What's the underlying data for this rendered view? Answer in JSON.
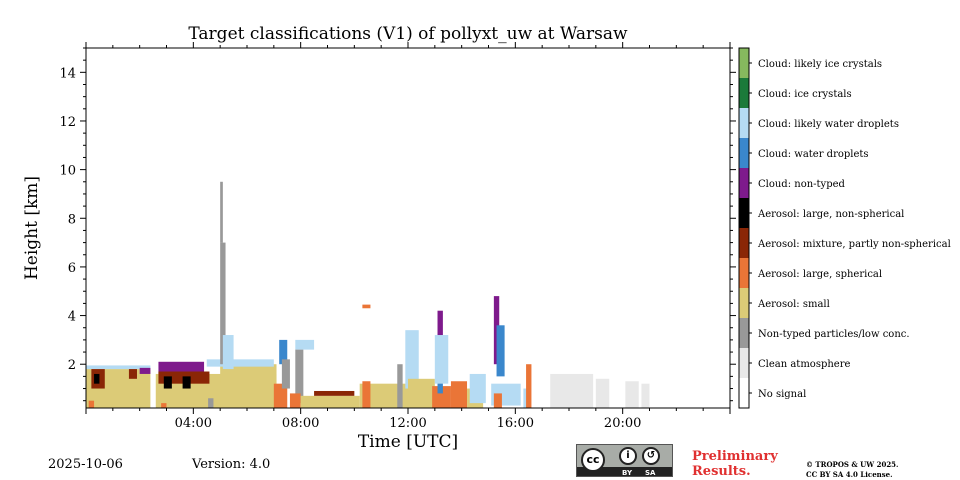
{
  "chart_data": {
    "type": "heatmap",
    "title": "Target classifications (V1) of pollyxt_uw at Warsaw",
    "xlabel": "Time [UTC]",
    "ylabel": "Height [km]",
    "xlim_hours": [
      0,
      24
    ],
    "ylim_km": [
      0.2,
      15.0
    ],
    "x_ticks": [
      {
        "hour": 4,
        "label": "04:00"
      },
      {
        "hour": 8,
        "label": "08:00"
      },
      {
        "hour": 12,
        "label": "12:00"
      },
      {
        "hour": 16,
        "label": "16:00"
      },
      {
        "hour": 20,
        "label": "20:00"
      }
    ],
    "y_ticks": [
      {
        "km": 2,
        "label": "2"
      },
      {
        "km": 4,
        "label": "4"
      },
      {
        "km": 6,
        "label": "6"
      },
      {
        "km": 8,
        "label": "8"
      },
      {
        "km": 10,
        "label": "10"
      },
      {
        "km": 12,
        "label": "12"
      },
      {
        "km": 14,
        "label": "14"
      }
    ],
    "classes": [
      {
        "id": 0,
        "label": "No signal",
        "color": "#ffffff"
      },
      {
        "id": 1,
        "label": "Clean atmosphere",
        "color": "#e8e8e8"
      },
      {
        "id": 2,
        "label": "Non-typed particles/low conc.",
        "color": "#999999"
      },
      {
        "id": 3,
        "label": "Aerosol: small",
        "color": "#dccb77"
      },
      {
        "id": 4,
        "label": "Aerosol: large, spherical",
        "color": "#ea7537"
      },
      {
        "id": 5,
        "label": "Aerosol: mixture, partly non-spherical",
        "color": "#8a2606"
      },
      {
        "id": 6,
        "label": "Aerosol: large, non-spherical",
        "color": "#000000"
      },
      {
        "id": 7,
        "label": "Cloud: non-typed",
        "color": "#7e1a8c"
      },
      {
        "id": 8,
        "label": "Cloud: water droplets",
        "color": "#3a87cc"
      },
      {
        "id": 9,
        "label": "Cloud: likely water droplets",
        "color": "#b5dbf3"
      },
      {
        "id": 10,
        "label": "Cloud: ice crystals",
        "color": "#1b7a3a"
      },
      {
        "id": 11,
        "label": "Cloud: likely ice crystals",
        "color": "#86b95e"
      }
    ],
    "regions": [
      {
        "cls": 3,
        "t": [
          0.0,
          2.4
        ],
        "h": [
          0.2,
          1.8
        ]
      },
      {
        "cls": 9,
        "t": [
          0.0,
          2.4
        ],
        "h": [
          1.8,
          1.95
        ]
      },
      {
        "cls": 5,
        "t": [
          0.2,
          0.7
        ],
        "h": [
          1.0,
          1.8
        ]
      },
      {
        "cls": 6,
        "t": [
          0.3,
          0.5
        ],
        "h": [
          1.2,
          1.6
        ]
      },
      {
        "cls": 4,
        "t": [
          0.1,
          0.3
        ],
        "h": [
          0.2,
          0.5
        ]
      },
      {
        "cls": 5,
        "t": [
          1.6,
          1.9
        ],
        "h": [
          1.4,
          1.8
        ]
      },
      {
        "cls": 7,
        "t": [
          2.0,
          2.4
        ],
        "h": [
          1.6,
          1.85
        ]
      },
      {
        "cls": 3,
        "t": [
          2.6,
          7.1
        ],
        "h": [
          0.2,
          1.6
        ]
      },
      {
        "cls": 3,
        "t": [
          5.0,
          7.1
        ],
        "h": [
          1.2,
          2.0
        ]
      },
      {
        "cls": 7,
        "t": [
          2.7,
          4.4
        ],
        "h": [
          1.6,
          2.1
        ]
      },
      {
        "cls": 5,
        "t": [
          2.7,
          4.6
        ],
        "h": [
          1.2,
          1.7
        ]
      },
      {
        "cls": 6,
        "t": [
          2.9,
          3.2
        ],
        "h": [
          1.0,
          1.5
        ]
      },
      {
        "cls": 6,
        "t": [
          3.6,
          3.9
        ],
        "h": [
          1.0,
          1.5
        ]
      },
      {
        "cls": 4,
        "t": [
          2.8,
          3.0
        ],
        "h": [
          0.2,
          0.4
        ]
      },
      {
        "cls": 9,
        "t": [
          4.5,
          7.0
        ],
        "h": [
          1.9,
          2.2
        ]
      },
      {
        "cls": 2,
        "t": [
          4.55,
          4.75
        ],
        "h": [
          0.2,
          0.6
        ]
      },
      {
        "cls": 2,
        "t": [
          5.0,
          5.2
        ],
        "h": [
          2.0,
          7.0
        ]
      },
      {
        "cls": 2,
        "t": [
          5.0,
          5.1
        ],
        "h": [
          7.0,
          9.5
        ]
      },
      {
        "cls": 9,
        "t": [
          5.1,
          5.5
        ],
        "h": [
          1.8,
          3.2
        ]
      },
      {
        "cls": 4,
        "t": [
          7.0,
          7.5
        ],
        "h": [
          0.2,
          1.2
        ]
      },
      {
        "cls": 8,
        "t": [
          7.2,
          7.5
        ],
        "h": [
          2.0,
          3.0
        ]
      },
      {
        "cls": 2,
        "t": [
          7.3,
          7.6
        ],
        "h": [
          1.0,
          2.2
        ]
      },
      {
        "cls": 9,
        "t": [
          7.8,
          8.5
        ],
        "h": [
          2.6,
          3.0
        ]
      },
      {
        "cls": 2,
        "t": [
          7.8,
          8.1
        ],
        "h": [
          0.4,
          2.6
        ]
      },
      {
        "cls": 4,
        "t": [
          7.6,
          8.0
        ],
        "h": [
          0.2,
          0.8
        ]
      },
      {
        "cls": 3,
        "t": [
          8.0,
          10.2
        ],
        "h": [
          0.2,
          0.7
        ]
      },
      {
        "cls": 5,
        "t": [
          8.5,
          10.0
        ],
        "h": [
          0.7,
          0.9
        ]
      },
      {
        "cls": 3,
        "t": [
          10.2,
          12.0
        ],
        "h": [
          0.2,
          1.2
        ]
      },
      {
        "cls": 4,
        "t": [
          10.3,
          10.6
        ],
        "h": [
          0.2,
          1.3
        ]
      },
      {
        "cls": 4,
        "t": [
          10.3,
          10.6
        ],
        "h": [
          4.3,
          4.45
        ]
      },
      {
        "cls": 2,
        "t": [
          11.6,
          11.8
        ],
        "h": [
          0.2,
          2.0
        ]
      },
      {
        "cls": 9,
        "t": [
          11.9,
          12.4
        ],
        "h": [
          1.0,
          3.4
        ]
      },
      {
        "cls": 3,
        "t": [
          12.0,
          13.0
        ],
        "h": [
          0.2,
          1.4
        ]
      },
      {
        "cls": 4,
        "t": [
          12.9,
          13.6
        ],
        "h": [
          0.2,
          1.1
        ]
      },
      {
        "cls": 8,
        "t": [
          13.1,
          13.3
        ],
        "h": [
          0.8,
          2.4
        ]
      },
      {
        "cls": 7,
        "t": [
          13.1,
          13.3
        ],
        "h": [
          2.6,
          4.2
        ]
      },
      {
        "cls": 9,
        "t": [
          13.0,
          13.5
        ],
        "h": [
          1.2,
          3.2
        ]
      },
      {
        "cls": 4,
        "t": [
          13.6,
          14.2
        ],
        "h": [
          0.2,
          1.3
        ]
      },
      {
        "cls": 3,
        "t": [
          14.2,
          14.8
        ],
        "h": [
          0.2,
          1.0
        ]
      },
      {
        "cls": 9,
        "t": [
          14.3,
          14.9
        ],
        "h": [
          0.4,
          1.6
        ]
      },
      {
        "cls": 7,
        "t": [
          15.2,
          15.4
        ],
        "h": [
          2.0,
          4.8
        ]
      },
      {
        "cls": 8,
        "t": [
          15.3,
          15.6
        ],
        "h": [
          1.5,
          3.6
        ]
      },
      {
        "cls": 9,
        "t": [
          15.1,
          16.2
        ],
        "h": [
          0.3,
          1.2
        ]
      },
      {
        "cls": 4,
        "t": [
          15.2,
          15.5
        ],
        "h": [
          0.2,
          0.8
        ]
      },
      {
        "cls": 9,
        "t": [
          16.3,
          16.5
        ],
        "h": [
          0.2,
          1.0
        ]
      },
      {
        "cls": 4,
        "t": [
          16.4,
          16.6
        ],
        "h": [
          0.2,
          2.0
        ]
      },
      {
        "cls": 1,
        "t": [
          17.3,
          18.9
        ],
        "h": [
          0.2,
          1.6
        ]
      },
      {
        "cls": 1,
        "t": [
          19.0,
          19.5
        ],
        "h": [
          0.2,
          1.4
        ]
      },
      {
        "cls": 1,
        "t": [
          20.1,
          20.6
        ],
        "h": [
          0.2,
          1.3
        ]
      },
      {
        "cls": 1,
        "t": [
          20.7,
          21.0
        ],
        "h": [
          0.2,
          1.2
        ]
      }
    ]
  },
  "footer": {
    "date": "2025-10-06",
    "version": "Version: 4.0",
    "license_badge": {
      "cc": "cc",
      "by": "BY",
      "sa": "SA"
    },
    "prelim_line1": "Preliminary",
    "prelim_line2": "Results.",
    "copyright_line1": "© TROPOS & UW 2025.",
    "copyright_line2": "CC BY SA 4.0 License."
  }
}
